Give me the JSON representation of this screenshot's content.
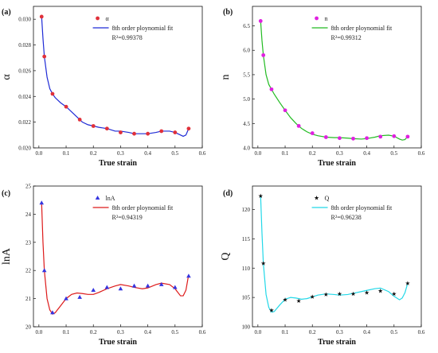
{
  "chart_data": [
    {
      "type": "scatter",
      "panel_label": "(a)",
      "xlabel": "True strain",
      "ylabel": "α",
      "xlim": [
        -0.02,
        0.6
      ],
      "ylim": [
        0.02,
        0.031
      ],
      "xticks": [
        "0.0",
        "0.1",
        "0.2",
        "0.3",
        "0.4",
        "0.5",
        "0.6"
      ],
      "yticks": [
        "0.020",
        "0.022",
        "0.024",
        "0.026",
        "0.028",
        "0.030"
      ],
      "points_name": "α",
      "points_color": "#e0303a",
      "marker": "circle",
      "fit_name": "8th order ploynomial fit",
      "fit_color": "#1f2bd6",
      "r2_text": "R²=0.99378",
      "x": [
        0.01,
        0.02,
        0.05,
        0.1,
        0.15,
        0.2,
        0.25,
        0.3,
        0.35,
        0.4,
        0.45,
        0.5,
        0.55
      ],
      "y": [
        0.0302,
        0.0271,
        0.0242,
        0.0232,
        0.0222,
        0.0217,
        0.0215,
        0.0212,
        0.0211,
        0.0211,
        0.0213,
        0.0212,
        0.0215
      ],
      "fit_x": [
        0.01,
        0.015,
        0.02,
        0.03,
        0.04,
        0.05,
        0.06,
        0.08,
        0.1,
        0.12,
        0.14,
        0.16,
        0.18,
        0.2,
        0.22,
        0.25,
        0.28,
        0.3,
        0.33,
        0.35,
        0.38,
        0.4,
        0.43,
        0.45,
        0.48,
        0.5,
        0.52,
        0.53,
        0.54,
        0.55
      ],
      "fit_y": [
        0.0302,
        0.0285,
        0.0271,
        0.0255,
        0.0246,
        0.0242,
        0.0239,
        0.0235,
        0.0232,
        0.0228,
        0.0224,
        0.022,
        0.0218,
        0.0217,
        0.0216,
        0.0215,
        0.0213,
        0.0213,
        0.0212,
        0.0211,
        0.0211,
        0.0211,
        0.0212,
        0.0213,
        0.0213,
        0.0212,
        0.021,
        0.0209,
        0.021,
        0.0215
      ]
    },
    {
      "type": "scatter",
      "panel_label": "(b)",
      "xlabel": "True strain",
      "ylabel": "n",
      "xlim": [
        -0.02,
        0.6
      ],
      "ylim": [
        4.0,
        6.9
      ],
      "xticks": [
        "0.0",
        "0.1",
        "0.2",
        "0.3",
        "0.4",
        "0.5",
        "0.6"
      ],
      "yticks": [
        "4.0",
        "4.5",
        "5.0",
        "5.5",
        "6.0",
        "6.5"
      ],
      "points_name": "n",
      "points_color": "#e020e0",
      "marker": "circle",
      "fit_name": "8th order ploynomial fit",
      "fit_color": "#22bb22",
      "r2_text": "R²=0.99312",
      "x": [
        0.01,
        0.02,
        0.05,
        0.1,
        0.15,
        0.2,
        0.25,
        0.3,
        0.35,
        0.4,
        0.45,
        0.5,
        0.55
      ],
      "y": [
        6.6,
        5.9,
        5.2,
        4.77,
        4.45,
        4.3,
        4.22,
        4.2,
        4.19,
        4.2,
        4.23,
        4.24,
        4.23
      ],
      "fit_x": [
        0.01,
        0.015,
        0.02,
        0.03,
        0.04,
        0.05,
        0.06,
        0.08,
        0.1,
        0.12,
        0.14,
        0.16,
        0.18,
        0.2,
        0.22,
        0.25,
        0.28,
        0.3,
        0.33,
        0.35,
        0.38,
        0.4,
        0.43,
        0.45,
        0.48,
        0.5,
        0.52,
        0.53,
        0.54,
        0.55
      ],
      "fit_y": [
        6.6,
        6.2,
        5.9,
        5.5,
        5.3,
        5.2,
        5.1,
        4.93,
        4.77,
        4.62,
        4.5,
        4.4,
        4.33,
        4.28,
        4.25,
        4.22,
        4.21,
        4.21,
        4.2,
        4.19,
        4.18,
        4.19,
        4.22,
        4.25,
        4.26,
        4.24,
        4.18,
        4.16,
        4.17,
        4.23
      ]
    },
    {
      "type": "scatter",
      "panel_label": "(c)",
      "xlabel": "True strain",
      "ylabel": "lnA",
      "xlim": [
        -0.02,
        0.6
      ],
      "ylim": [
        20,
        25
      ],
      "xticks": [
        "0.0",
        "0.1",
        "0.2",
        "0.3",
        "0.4",
        "0.5",
        "0.6"
      ],
      "yticks": [
        "20",
        "21",
        "22",
        "23",
        "24",
        "25"
      ],
      "points_name": "lnA",
      "points_color": "#3535e0",
      "marker": "triangle",
      "fit_name": "8th order ploynomial fit",
      "fit_color": "#dd1a1a",
      "r2_text": "R²=0.94319",
      "x": [
        0.01,
        0.02,
        0.05,
        0.1,
        0.15,
        0.2,
        0.25,
        0.3,
        0.35,
        0.4,
        0.45,
        0.5,
        0.55
      ],
      "y": [
        24.4,
        22.0,
        20.5,
        21.0,
        21.05,
        21.3,
        21.4,
        21.35,
        21.45,
        21.45,
        21.5,
        21.4,
        21.8
      ],
      "fit_x": [
        0.01,
        0.015,
        0.02,
        0.03,
        0.04,
        0.05,
        0.06,
        0.08,
        0.1,
        0.12,
        0.14,
        0.16,
        0.18,
        0.2,
        0.22,
        0.25,
        0.28,
        0.3,
        0.33,
        0.35,
        0.38,
        0.4,
        0.43,
        0.45,
        0.48,
        0.5,
        0.52,
        0.53,
        0.54,
        0.55
      ],
      "fit_y": [
        24.4,
        23.0,
        22.0,
        21.0,
        20.6,
        20.45,
        20.5,
        20.75,
        21.0,
        21.15,
        21.2,
        21.18,
        21.15,
        21.15,
        21.22,
        21.35,
        21.45,
        21.5,
        21.45,
        21.4,
        21.35,
        21.38,
        21.5,
        21.55,
        21.5,
        21.35,
        21.1,
        21.1,
        21.3,
        21.85
      ]
    },
    {
      "type": "scatter",
      "panel_label": "(d)",
      "xlabel": "True strain",
      "ylabel": "Q",
      "xlim": [
        -0.02,
        0.6
      ],
      "ylim": [
        100,
        124
      ],
      "xticks": [
        "0.0",
        "0.1",
        "0.2",
        "0.3",
        "0.4",
        "0.5",
        "0.6"
      ],
      "yticks": [
        "100",
        "105",
        "110",
        "115",
        "120"
      ],
      "points_name": "Q",
      "points_color": "#111111",
      "marker": "star",
      "fit_name": "8th order ploynomial fit",
      "fit_color": "#22d8e8",
      "r2_text": "R²=0.96238",
      "x": [
        0.01,
        0.02,
        0.05,
        0.1,
        0.15,
        0.2,
        0.25,
        0.3,
        0.35,
        0.4,
        0.45,
        0.5,
        0.55
      ],
      "y": [
        122.3,
        110.8,
        102.8,
        104.6,
        104.4,
        105.1,
        105.5,
        105.6,
        105.6,
        105.8,
        106.1,
        105.6,
        107.4
      ],
      "fit_x": [
        0.01,
        0.015,
        0.02,
        0.03,
        0.04,
        0.05,
        0.06,
        0.08,
        0.1,
        0.12,
        0.14,
        0.16,
        0.18,
        0.2,
        0.22,
        0.25,
        0.28,
        0.3,
        0.33,
        0.35,
        0.38,
        0.4,
        0.43,
        0.45,
        0.48,
        0.5,
        0.52,
        0.53,
        0.54,
        0.55
      ],
      "fit_y": [
        122.3,
        116.0,
        110.8,
        105.5,
        103.3,
        102.5,
        102.6,
        103.7,
        104.7,
        105.0,
        104.9,
        104.7,
        104.8,
        105.1,
        105.4,
        105.6,
        105.5,
        105.4,
        105.5,
        105.7,
        106.0,
        106.2,
        106.5,
        106.6,
        106.0,
        105.2,
        104.6,
        104.9,
        105.8,
        107.4
      ]
    }
  ]
}
